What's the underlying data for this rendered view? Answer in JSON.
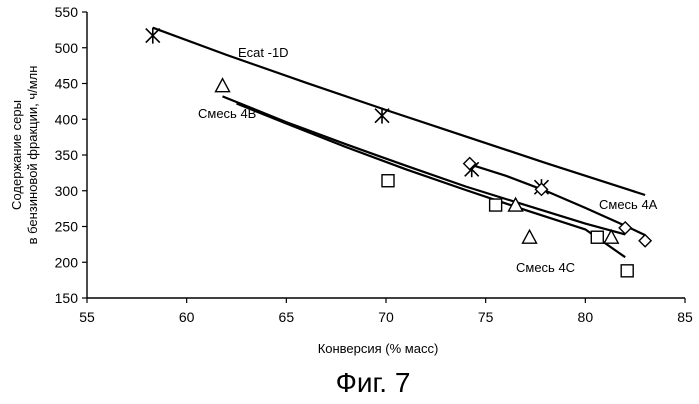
{
  "figure_caption": "Фиг. 7",
  "chart_data": {
    "type": "scatter",
    "xlabel": "Конверсия (% масс)",
    "ylabel": [
      "Содержание серы",
      "в бензиновой фракции, ч/млн"
    ],
    "xlim": [
      55,
      85
    ],
    "ylim": [
      150,
      550
    ],
    "xticks": [
      55,
      60,
      65,
      70,
      75,
      80,
      85
    ],
    "yticks": [
      150,
      200,
      250,
      300,
      350,
      400,
      450,
      500,
      550
    ],
    "grid": false,
    "legend": "none",
    "series": [
      {
        "name": "Ecat -1D",
        "marker": "star",
        "points": [
          [
            58.3,
            517
          ],
          [
            69.8,
            405
          ],
          [
            74.3,
            330
          ],
          [
            77.8,
            305
          ]
        ],
        "trend": [
          [
            58.3,
            528
          ],
          [
            62,
            490
          ],
          [
            66,
            451
          ],
          [
            70,
            413
          ],
          [
            74,
            376
          ],
          [
            78,
            339
          ],
          [
            82,
            303
          ],
          [
            83,
            294
          ]
        ]
      },
      {
        "name": "Смесь 4A",
        "marker": "diamond",
        "points": [
          [
            74.2,
            338
          ],
          [
            77.8,
            302
          ],
          [
            82.0,
            248
          ],
          [
            83.0,
            230
          ]
        ],
        "trend": [
          [
            74.2,
            337
          ],
          [
            76,
            321
          ],
          [
            78,
            300
          ],
          [
            80,
            276
          ],
          [
            82,
            251
          ],
          [
            83,
            238
          ]
        ]
      },
      {
        "name": "Смесь 4B",
        "marker": "triangle",
        "points": [
          [
            61.8,
            447
          ],
          [
            76.5,
            280
          ],
          [
            77.2,
            235
          ],
          [
            81.3,
            235
          ]
        ],
        "trend": [
          [
            61.8,
            432
          ],
          [
            65,
            396
          ],
          [
            68,
            365
          ],
          [
            71,
            335
          ],
          [
            74,
            306
          ],
          [
            77,
            280
          ],
          [
            80,
            254
          ],
          [
            82,
            239
          ]
        ]
      },
      {
        "name": "Смесь 4C",
        "marker": "square",
        "points": [
          [
            70.1,
            314
          ],
          [
            75.5,
            280
          ],
          [
            80.6,
            235
          ],
          [
            82.1,
            188
          ]
        ],
        "trend": [
          [
            62.5,
            422
          ],
          [
            65,
            394
          ],
          [
            68,
            361
          ],
          [
            71,
            330
          ],
          [
            74,
            301
          ],
          [
            77,
            273
          ],
          [
            80,
            246
          ],
          [
            82,
            207
          ]
        ]
      }
    ]
  }
}
